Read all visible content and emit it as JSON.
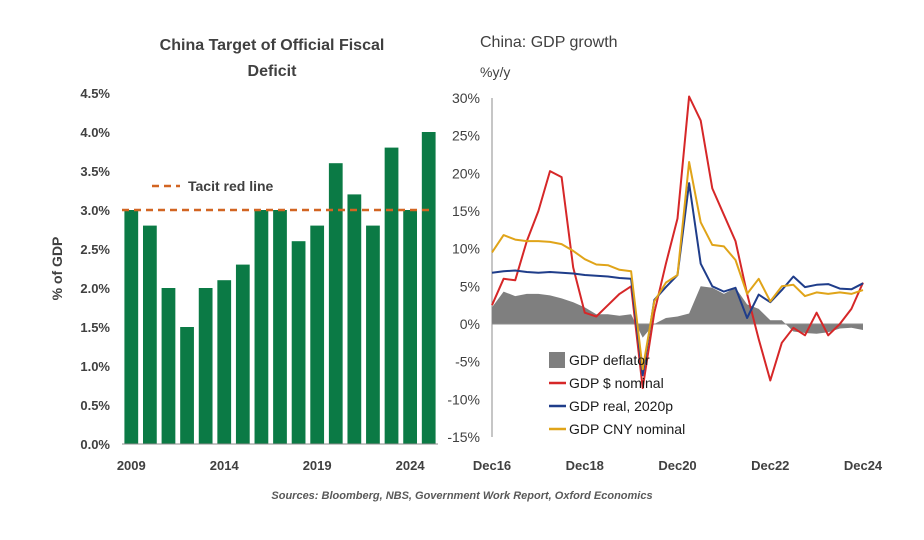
{
  "chart_data": [
    {
      "type": "bar",
      "title": "China Target of Official  Fiscal Deficit",
      "title_lines": [
        "China Target of Official  Fiscal",
        "Deficit"
      ],
      "ylabel": "% of GDP",
      "xlabel": "",
      "ylim": [
        0,
        4.5
      ],
      "yticks": [
        "0.0%",
        "0.5%",
        "1.0%",
        "1.5%",
        "2.0%",
        "2.5%",
        "3.0%",
        "3.5%",
        "4.0%",
        "4.5%"
      ],
      "xtick_labels": [
        "2009",
        "2014",
        "2019",
        "2024"
      ],
      "categories": [
        2009,
        2010,
        2011,
        2012,
        2013,
        2014,
        2015,
        2016,
        2017,
        2018,
        2019,
        2020,
        2021,
        2022,
        2023,
        2024,
        2025
      ],
      "values": [
        3.0,
        2.8,
        2.0,
        1.5,
        2.0,
        2.1,
        2.3,
        3.0,
        3.0,
        2.6,
        2.8,
        3.6,
        3.2,
        2.8,
        3.8,
        3.0,
        4.0
      ],
      "bar_color": "#0b7a45",
      "reference_line": {
        "label": "Tacit red line",
        "value": 3.0,
        "color": "#d26522",
        "style": "dashed"
      },
      "legend_position": "top-left",
      "grid": false
    },
    {
      "type": "line",
      "title": "China: GDP growth",
      "ylabel": "%y/y",
      "ylim": [
        -15,
        30
      ],
      "yticks": [
        "-15%",
        "-10%",
        "-5%",
        "0%",
        "5%",
        "10%",
        "15%",
        "20%",
        "25%",
        "30%"
      ],
      "xtick_labels": [
        "Dec16",
        "Dec18",
        "Dec20",
        "Dec22",
        "Dec24"
      ],
      "x": [
        "Dec16",
        "Mar17",
        "Jun17",
        "Sep17",
        "Dec17",
        "Mar18",
        "Jun18",
        "Sep18",
        "Dec18",
        "Mar19",
        "Jun19",
        "Sep19",
        "Dec19",
        "Mar20",
        "Jun20",
        "Sep20",
        "Dec20",
        "Mar21",
        "Jun21",
        "Sep21",
        "Dec21",
        "Mar22",
        "Jun22",
        "Sep22",
        "Dec22",
        "Mar23",
        "Jun23",
        "Sep23",
        "Dec23",
        "Mar24",
        "Jun24",
        "Sep24",
        "Dec24"
      ],
      "legend_position": "bottom-left",
      "grid": false,
      "series": [
        {
          "name": "GDP deflator",
          "kind": "area",
          "color": "#7f7f7f",
          "values": [
            2.2,
            4.3,
            3.7,
            4.0,
            4.0,
            3.8,
            3.4,
            2.9,
            2.2,
            1.3,
            1.3,
            1.1,
            1.3,
            -1.8,
            0.0,
            0.8,
            1.0,
            1.4,
            5.0,
            4.8,
            4.0,
            4.8,
            2.6,
            2.0,
            0.5,
            0.5,
            -1.0,
            -1.2,
            -1.3,
            -1.1,
            -0.6,
            -0.5,
            -0.8
          ]
        },
        {
          "name": "GDP $ nominal",
          "kind": "line",
          "color": "#d62728",
          "values": [
            2.5,
            6.0,
            5.8,
            11.0,
            15.0,
            20.3,
            19.5,
            7.5,
            1.5,
            1.0,
            2.5,
            4.0,
            5.0,
            -8.5,
            1.5,
            8.0,
            14.0,
            30.2,
            27.0,
            18.0,
            14.5,
            11.0,
            4.0,
            -2.0,
            -7.5,
            -2.5,
            -0.5,
            -1.5,
            1.5,
            -1.5,
            0.0,
            2.0,
            5.5
          ]
        },
        {
          "name": "GDP real, 2020p",
          "kind": "line",
          "color": "#1f3d8a",
          "values": [
            6.8,
            7.0,
            7.1,
            6.9,
            6.8,
            6.9,
            6.8,
            6.7,
            6.5,
            6.4,
            6.3,
            6.1,
            6.0,
            -6.8,
            3.2,
            4.9,
            6.5,
            18.7,
            8.0,
            5.0,
            4.3,
            4.8,
            0.8,
            3.9,
            2.9,
            4.5,
            6.3,
            4.9,
            5.2,
            5.3,
            4.7,
            4.6,
            5.4
          ]
        },
        {
          "name": "GDP CNY nominal",
          "kind": "line",
          "color": "#e0a419",
          "values": [
            9.5,
            11.8,
            11.2,
            11.0,
            11.0,
            10.9,
            10.6,
            9.7,
            8.6,
            7.9,
            7.8,
            7.2,
            7.0,
            -6.0,
            3.0,
            5.5,
            6.5,
            21.5,
            13.5,
            10.5,
            10.3,
            8.5,
            4.0,
            6.0,
            3.0,
            5.0,
            5.2,
            3.7,
            4.2,
            4.0,
            4.2,
            4.0,
            4.5
          ]
        }
      ]
    }
  ],
  "source_note": "Sources: Bloomberg, NBS, Government Work Report, Oxford Economics"
}
